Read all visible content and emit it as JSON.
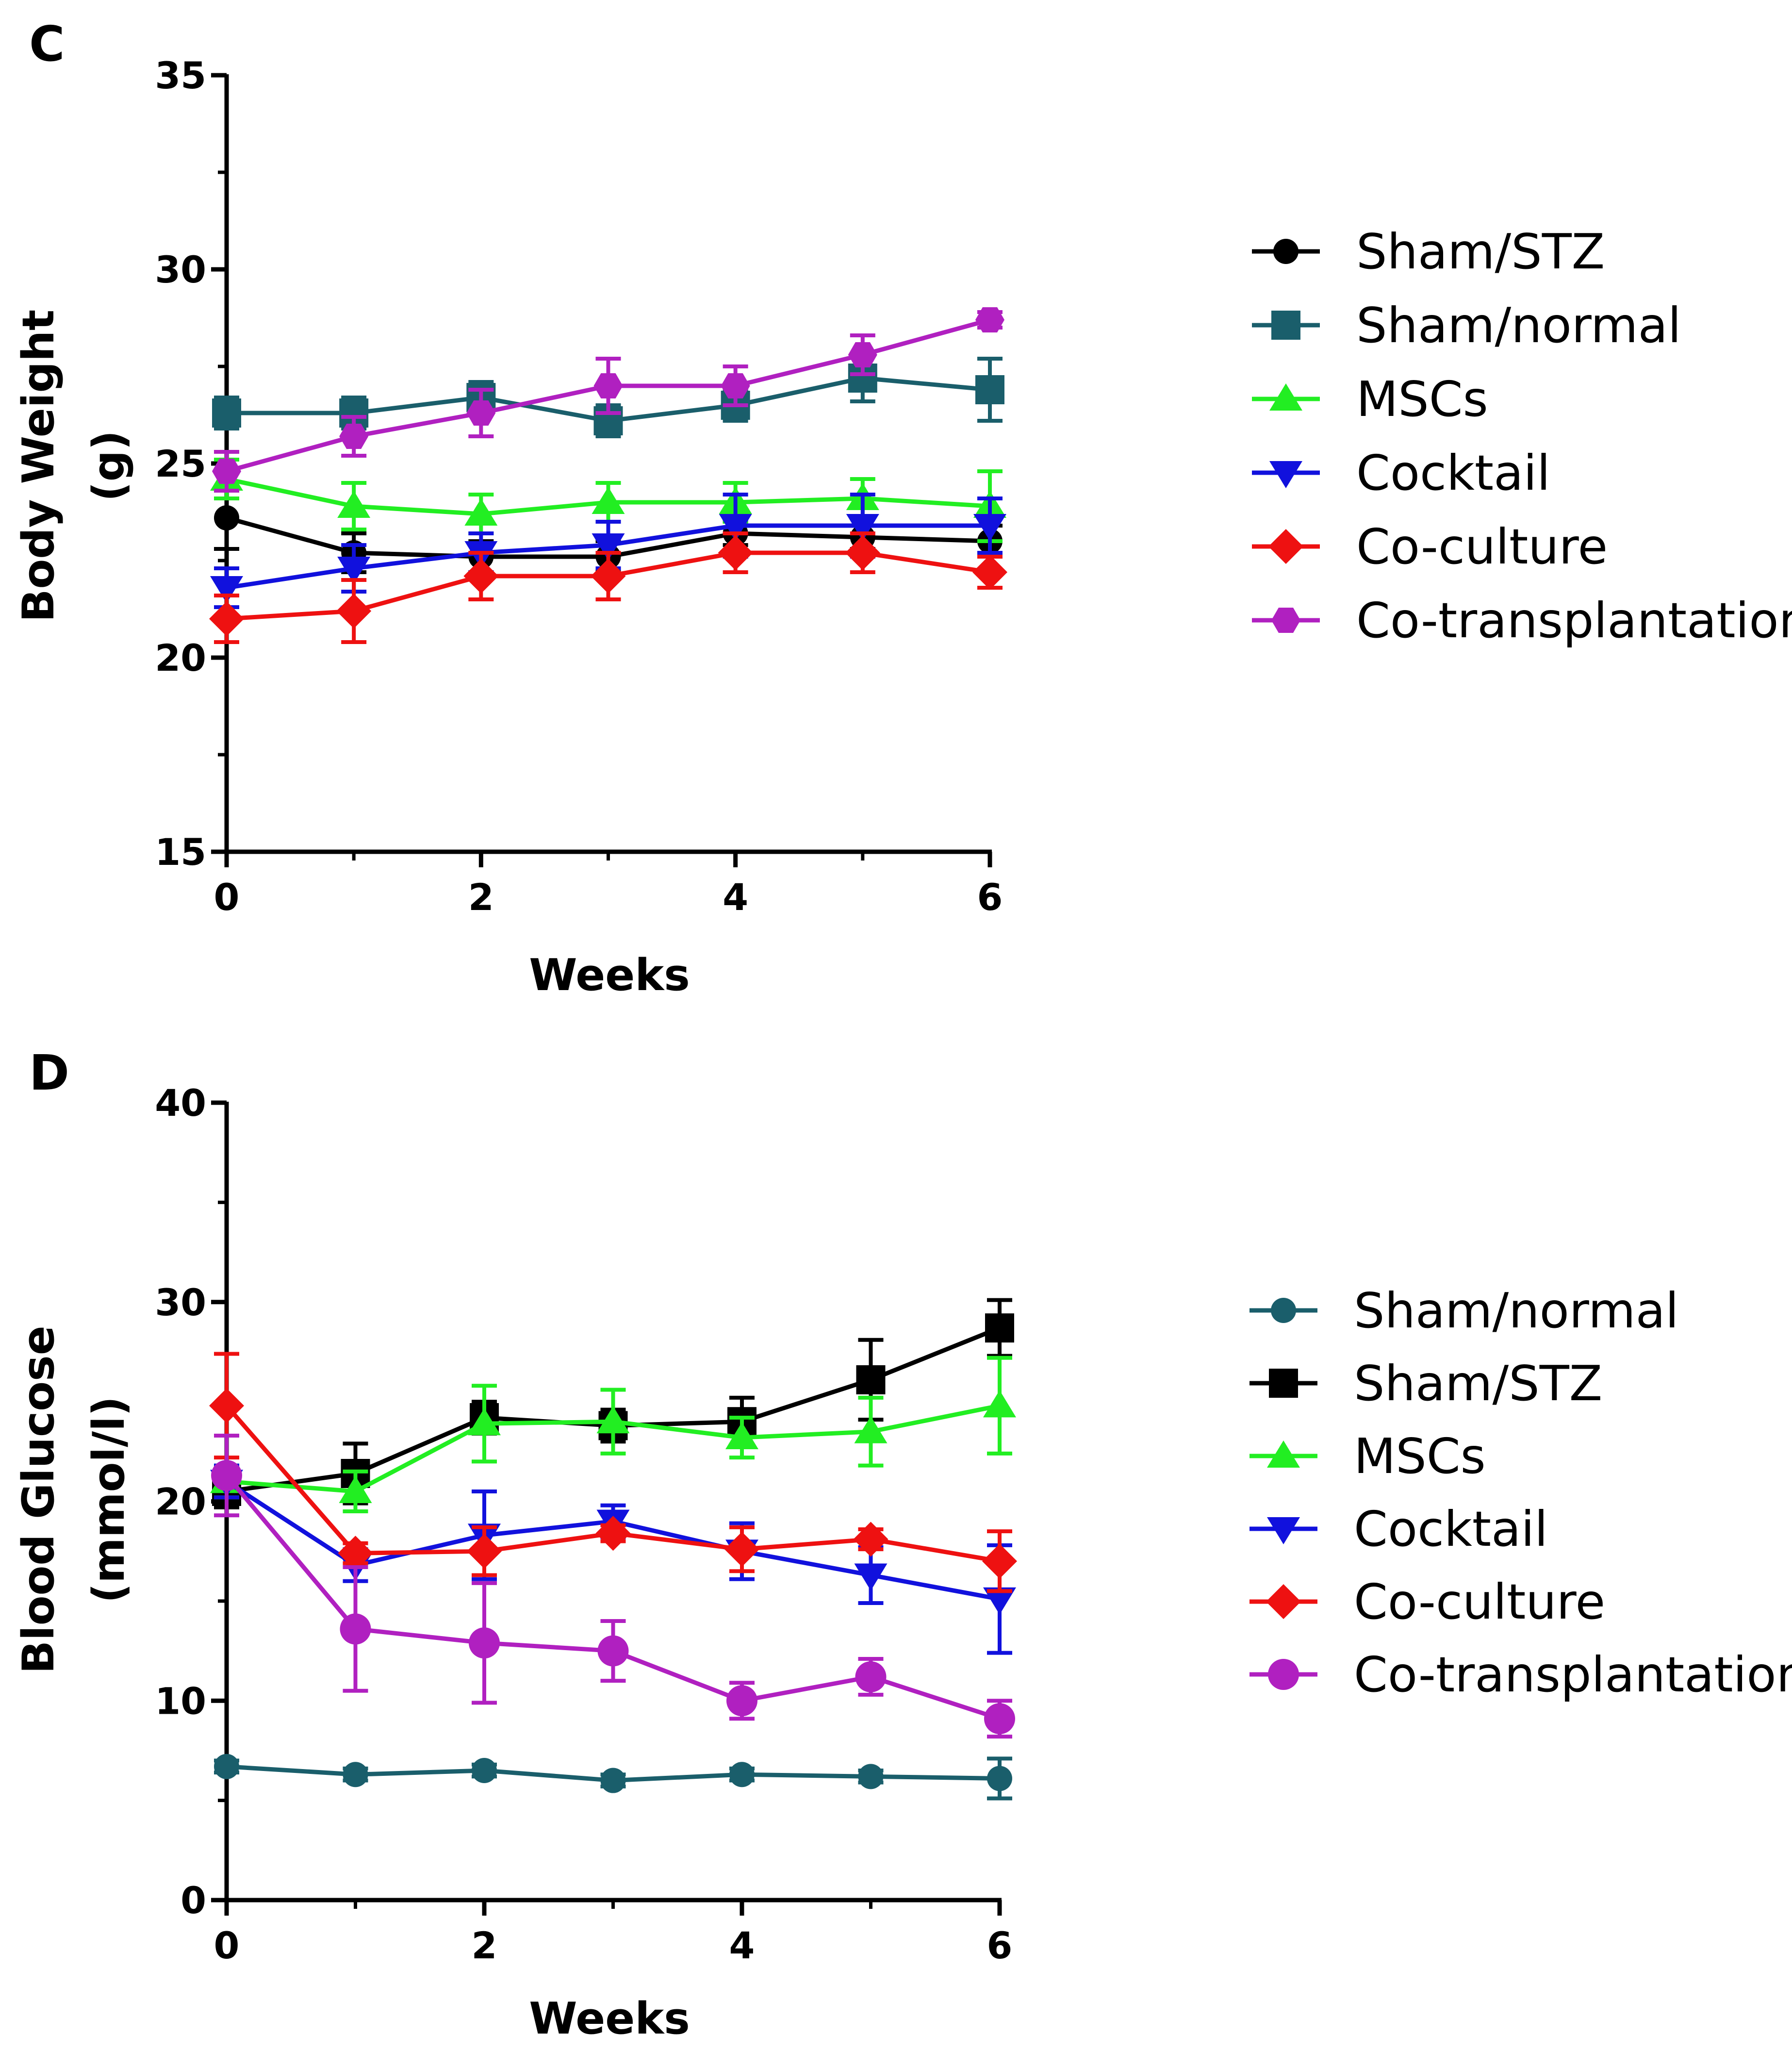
{
  "chart_data": [
    {
      "panel": "C",
      "type": "line",
      "xlabel": "Weeks",
      "ylabel": [
        "Body Weight",
        "(g)"
      ],
      "xlim": [
        0,
        6
      ],
      "ylim": [
        15,
        35
      ],
      "xticks": [
        "0",
        "2",
        "4",
        "6"
      ],
      "yticks": [
        "15",
        "20",
        "25",
        "30",
        "35"
      ],
      "x": [
        0,
        1,
        2,
        3,
        4,
        5,
        6
      ],
      "legend_position": "right",
      "series": [
        {
          "name": "Sham/STZ",
          "marker": "circle",
          "color": "#000000",
          "values": [
            23.6,
            22.7,
            22.6,
            22.6,
            23.2,
            23.1,
            23.0
          ],
          "errors": [
            0.8,
            0.5,
            0.4,
            0.4,
            0.3,
            0.3,
            0.4
          ]
        },
        {
          "name": "Sham/normal",
          "marker": "square",
          "color": "#1a5e6b",
          "values": [
            26.3,
            26.3,
            26.7,
            26.1,
            26.5,
            27.2,
            26.9
          ],
          "errors": [
            0.4,
            0.4,
            0.4,
            0.4,
            0.4,
            0.6,
            0.8
          ]
        },
        {
          "name": "MSCs",
          "marker": "triangle-up",
          "color": "#22ee22",
          "values": [
            24.6,
            23.9,
            23.7,
            24.0,
            24.0,
            24.1,
            23.9
          ],
          "errors": [
            0.5,
            0.6,
            0.5,
            0.5,
            0.5,
            0.5,
            0.9
          ]
        },
        {
          "name": "Cocktail",
          "marker": "triangle-down",
          "color": "#1111dd",
          "values": [
            21.8,
            22.3,
            22.7,
            22.9,
            23.4,
            23.4,
            23.4
          ],
          "errors": [
            0.5,
            0.6,
            0.5,
            0.6,
            0.8,
            0.8,
            0.7
          ]
        },
        {
          "name": "Co-culture",
          "marker": "diamond",
          "color": "#ee1111",
          "values": [
            21.0,
            21.2,
            22.1,
            22.1,
            22.7,
            22.7,
            22.2
          ],
          "errors": [
            0.6,
            0.8,
            0.6,
            0.6,
            0.5,
            0.5,
            0.4
          ]
        },
        {
          "name": "Co-transplantation",
          "marker": "hexagon",
          "color": "#b020c0",
          "values": [
            24.8,
            25.7,
            26.3,
            27.0,
            27.0,
            27.8,
            28.7
          ],
          "errors": [
            0.5,
            0.5,
            0.6,
            0.7,
            0.5,
            0.5,
            0.2
          ]
        }
      ]
    },
    {
      "panel": "D",
      "type": "line",
      "xlabel": "Weeks",
      "ylabel": [
        "Blood Glucose",
        "(mmol/l)"
      ],
      "xlim": [
        0,
        6
      ],
      "ylim": [
        0,
        40
      ],
      "xticks": [
        "0",
        "2",
        "4",
        "6"
      ],
      "yticks": [
        "0",
        "10",
        "20",
        "30",
        "40"
      ],
      "x": [
        0,
        1,
        2,
        3,
        4,
        5,
        6
      ],
      "legend_position": "right",
      "series": [
        {
          "name": "Sham/normal",
          "marker": "circle",
          "color": "#1a5e6b",
          "values": [
            6.7,
            6.3,
            6.5,
            6.0,
            6.3,
            6.2,
            6.1
          ],
          "errors": [
            0.3,
            0.3,
            0.3,
            0.3,
            0.3,
            0.3,
            1.0
          ]
        },
        {
          "name": "Sham/STZ",
          "marker": "square",
          "color": "#000000",
          "values": [
            20.5,
            21.4,
            24.2,
            23.8,
            24.0,
            26.1,
            28.7
          ],
          "errors": [
            0.8,
            1.5,
            0.8,
            0.8,
            1.2,
            2.0,
            1.4
          ]
        },
        {
          "name": "MSCs",
          "marker": "triangle-up",
          "color": "#22ee22",
          "values": [
            21.0,
            20.5,
            23.9,
            24.0,
            23.2,
            23.5,
            24.8
          ],
          "errors": [
            0.8,
            1.0,
            1.9,
            1.6,
            1.0,
            1.7,
            2.4
          ]
        },
        {
          "name": "Cocktail",
          "marker": "triangle-down",
          "color": "#1111dd",
          "values": [
            21.0,
            16.8,
            18.3,
            19.0,
            17.5,
            16.3,
            15.1
          ],
          "errors": [
            0.8,
            0.8,
            2.2,
            0.8,
            1.4,
            1.4,
            2.7
          ]
        },
        {
          "name": "Co-culture",
          "marker": "diamond",
          "color": "#ee1111",
          "values": [
            24.8,
            17.4,
            17.5,
            18.4,
            17.6,
            18.1,
            17.0
          ],
          "errors": [
            2.6,
            0.5,
            1.2,
            0.4,
            1.1,
            0.5,
            1.5
          ]
        },
        {
          "name": "Co-transplantation",
          "marker": "circle-large",
          "color": "#b020c0",
          "values": [
            21.3,
            13.6,
            12.9,
            12.5,
            10.0,
            11.2,
            9.1
          ],
          "errors": [
            2.0,
            3.1,
            3.0,
            1.5,
            0.9,
            0.9,
            0.9
          ]
        }
      ]
    }
  ]
}
